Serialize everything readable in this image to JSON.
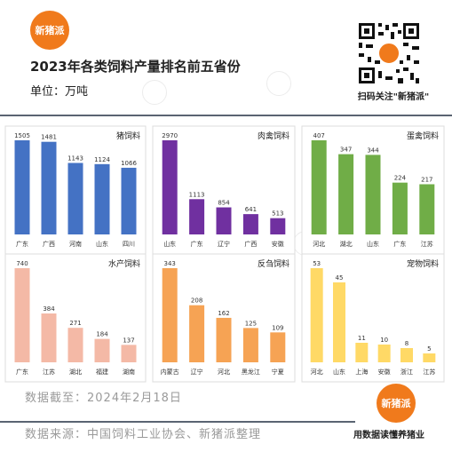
{
  "header": {
    "logo_text": "新猪派",
    "title": "2023年各类饲料产量排名前五省份",
    "unit": "单位：万吨",
    "qr_caption": "扫码关注\"新猪派\""
  },
  "footer": {
    "cutoff": "数据截至：2024年2月18日",
    "source": "数据来源：中国饲料工业协会、新猪派整理",
    "logo_text": "新猪派",
    "slogan": "用数据读懂养猪业"
  },
  "colors": {
    "pig": "#4472c4",
    "poultry_meat": "#7030a0",
    "layer": "#70ad47",
    "aqua": "#f4b9a6",
    "ruminant": "#f6a354",
    "pet": "#ffd966",
    "brand": "#f07a1c"
  },
  "chart_data": [
    {
      "type": "bar",
      "title": "猪饲料",
      "categories": [
        "广东",
        "广西",
        "河南",
        "山东",
        "四川"
      ],
      "values": [
        1505,
        1481,
        1143,
        1124,
        1066
      ]
    },
    {
      "type": "bar",
      "title": "肉禽饲料",
      "categories": [
        "山东",
        "广东",
        "辽宁",
        "广西",
        "安徽"
      ],
      "values": [
        2970,
        1113,
        854,
        641,
        513
      ]
    },
    {
      "type": "bar",
      "title": "蛋禽饲料",
      "categories": [
        "河北",
        "湖北",
        "山东",
        "广东",
        "江苏"
      ],
      "values": [
        407,
        347,
        344,
        224,
        217
      ]
    },
    {
      "type": "bar",
      "title": "水产饲料",
      "categories": [
        "广东",
        "江苏",
        "湖北",
        "福建",
        "湖南"
      ],
      "values": [
        740,
        384,
        271,
        184,
        137
      ]
    },
    {
      "type": "bar",
      "title": "反刍饲料",
      "categories": [
        "内蒙古",
        "辽宁",
        "河北",
        "黑龙江",
        "宁夏"
      ],
      "values": [
        343,
        208,
        162,
        125,
        109
      ]
    },
    {
      "type": "bar",
      "title": "宠物饲料",
      "categories": [
        "河北",
        "山东",
        "上海",
        "安徽",
        "浙江",
        "江苏"
      ],
      "values": [
        53,
        45,
        11,
        10,
        8,
        5
      ]
    }
  ]
}
